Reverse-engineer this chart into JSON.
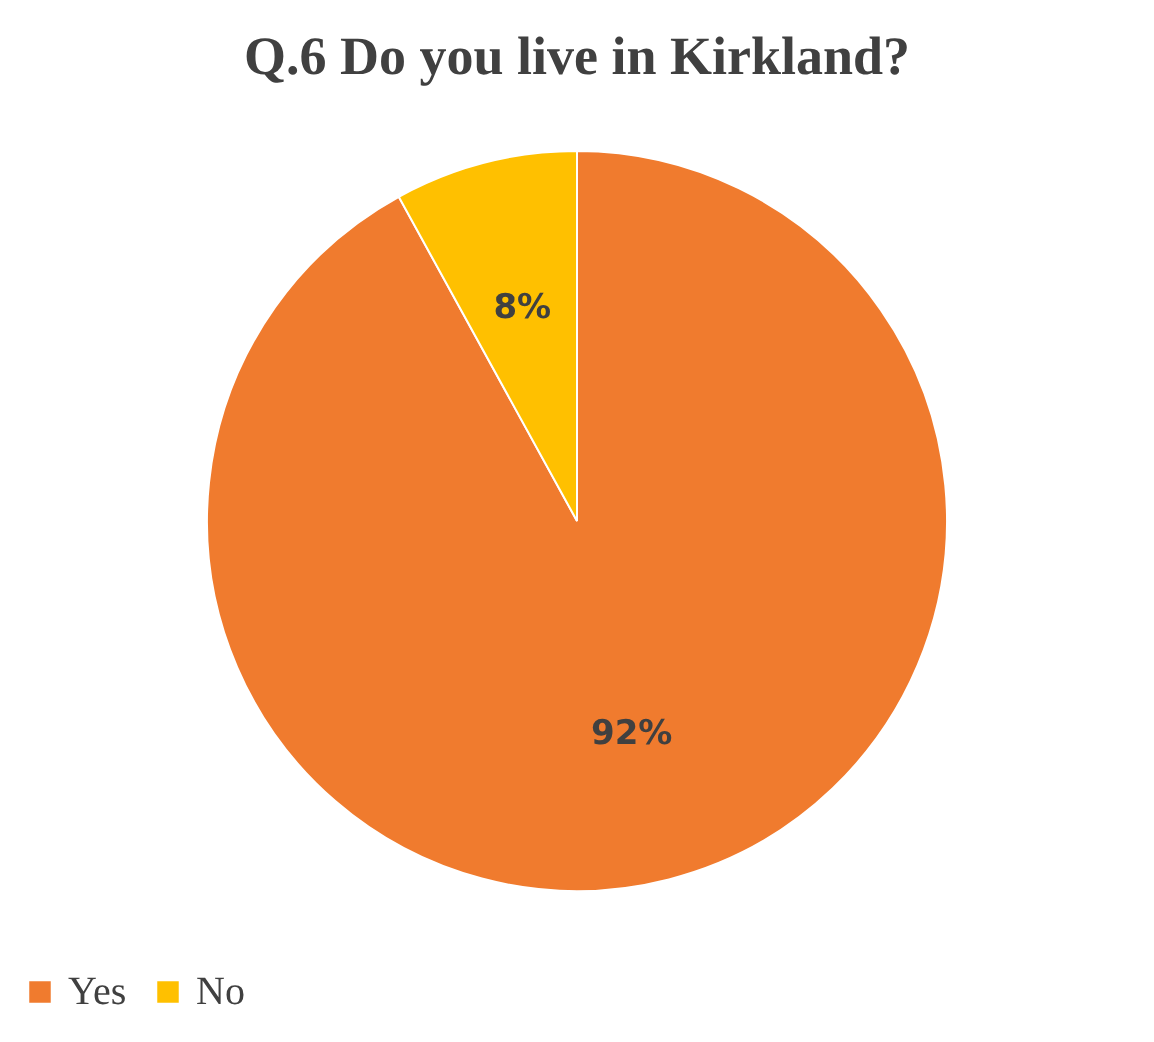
{
  "chart_data": {
    "type": "pie",
    "title": "Q.6  Do you live in Kirkland?",
    "categories": [
      "Yes",
      "No"
    ],
    "values": [
      92,
      8
    ],
    "colors": [
      "#f07b2e",
      "#ffc000"
    ],
    "value_labels": [
      "92%",
      "8%"
    ],
    "legend": "bottom"
  }
}
